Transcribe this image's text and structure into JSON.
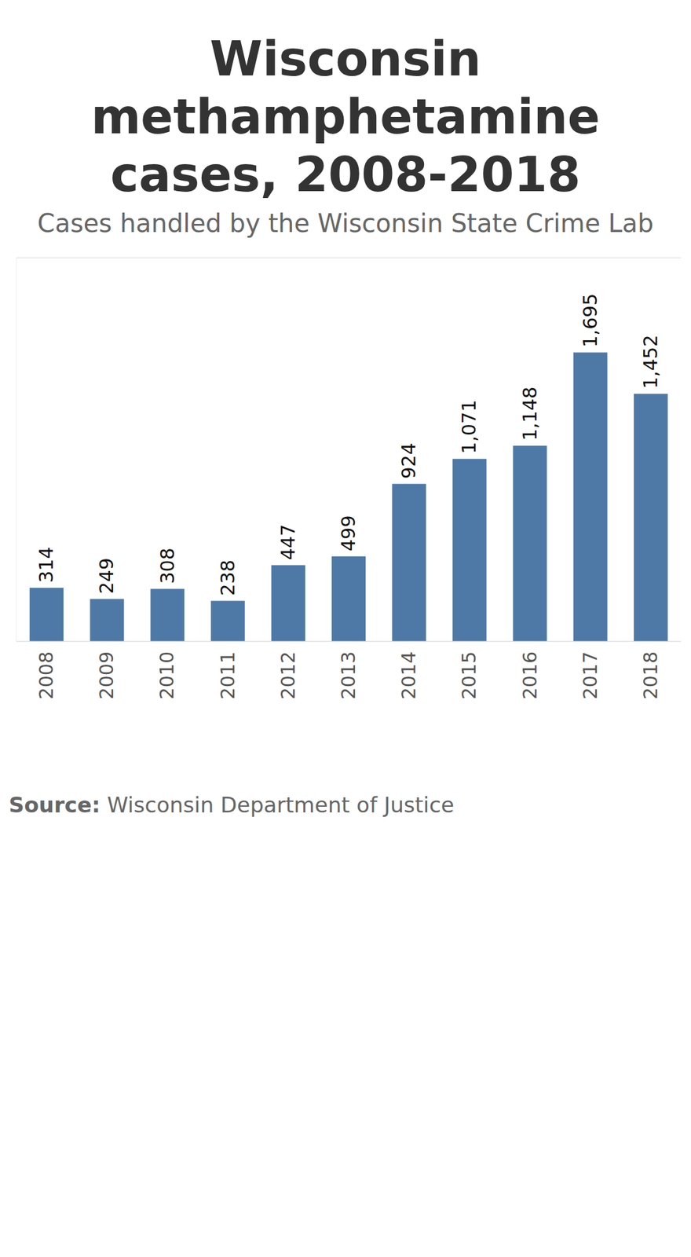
{
  "chart_data": {
    "type": "bar",
    "title": "Wisconsin methamphetamine cases, 2008-2018",
    "subtitle": "Cases handled by the Wisconsin State Crime Lab",
    "categories": [
      "2008",
      "2009",
      "2010",
      "2011",
      "2012",
      "2013",
      "2014",
      "2015",
      "2016",
      "2017",
      "2018"
    ],
    "values": [
      314,
      249,
      308,
      238,
      447,
      499,
      924,
      1071,
      1148,
      1695,
      1452
    ],
    "value_labels": [
      "314",
      "249",
      "308",
      "238",
      "447",
      "499",
      "924",
      "1,071",
      "1,148",
      "1,695",
      "1,452"
    ],
    "data_labels": true,
    "color": "#4e79a7",
    "ylim": [
      0,
      2250
    ],
    "yticks": [
      0,
      500,
      1000,
      1500,
      2000
    ],
    "grid": true,
    "tick_labels": "x",
    "source_label": "Source:",
    "source": "Wisconsin Department of Justice"
  }
}
